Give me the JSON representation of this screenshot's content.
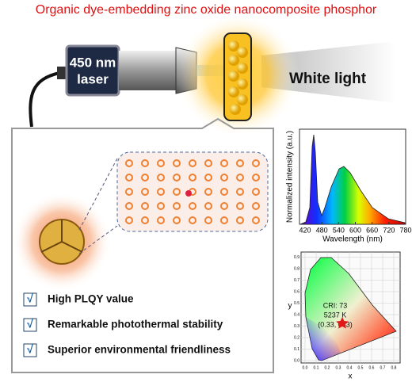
{
  "title": "Organic dye-embedding zinc oxide nanocomposite phosphor",
  "laser": {
    "line1": "450 nm",
    "line2": "laser"
  },
  "output": "White light",
  "features": [
    {
      "check": "√",
      "text": "High PLQY value"
    },
    {
      "check": "√",
      "text": "Remarkable photothermal stability"
    },
    {
      "check": "√",
      "text": "Superior environmental friendliness"
    }
  ],
  "spectrum": {
    "ylabel": "Normalized intensity (a.u.)",
    "xlabel": "Wavelength (nm)",
    "xticks": [
      "420",
      "480",
      "540",
      "600",
      "660",
      "720",
      "780"
    ]
  },
  "cie": {
    "annotation": [
      "CRI: 73",
      "5237 K",
      "(0.33, 033)"
    ],
    "xlabel": "x",
    "ylabel": "y",
    "xticks": [
      "0.0",
      "0.1",
      "0.2",
      "0.3",
      "0.4",
      "0.5",
      "0.6",
      "0.7",
      "0.8"
    ],
    "yticks": [
      "0.0",
      "0.1",
      "0.2",
      "0.3",
      "0.4",
      "0.5",
      "0.6",
      "0.7",
      "0.8",
      "0.9"
    ]
  }
}
